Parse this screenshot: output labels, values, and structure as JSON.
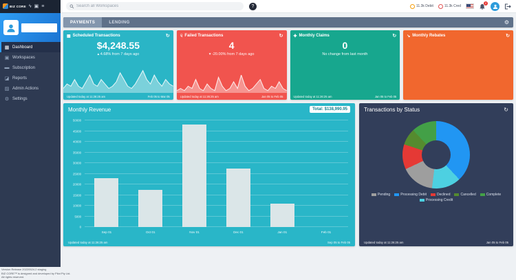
{
  "topbar": {
    "brand": "BIZ CORE",
    "search_placeholder": "Search all Workspaces",
    "help_label": "?",
    "stat_pills": [
      {
        "label": "11.3k Debit",
        "color": "#f59e0b"
      },
      {
        "label": "11.3k Cred",
        "color": "#e05252"
      }
    ],
    "bell_count": "2"
  },
  "sidebar": {
    "items": [
      {
        "label": "Dashboard",
        "icon": "dashboard-icon",
        "glyph": "▦",
        "active": true
      },
      {
        "label": "Workspaces",
        "icon": "workspaces-icon",
        "glyph": "▣"
      },
      {
        "label": "Subscription",
        "icon": "subscription-icon",
        "glyph": "▬"
      },
      {
        "label": "Reports",
        "icon": "reports-icon",
        "glyph": "◪"
      },
      {
        "label": "Admin Actions",
        "icon": "admin-actions-icon",
        "glyph": "▨"
      },
      {
        "label": "Settings",
        "icon": "settings-icon",
        "glyph": "⚙"
      }
    ],
    "fineprint": [
      "Version Release 20220524.2 staging",
      "BIZ CORE™ is designed and developed by Pilot Pty Ltd.",
      "All rights reserved."
    ]
  },
  "tabs": {
    "active": "PAYMENTS",
    "inactive": "LENDING"
  },
  "cards": [
    {
      "title": "Scheduled Transactions",
      "icon": "calendar-icon",
      "glyph": "▦",
      "value": "$4,248.55",
      "delta": "▴ 4.68% from 7 days ago",
      "updated": "Updated today at 11:26:25 am",
      "range": "Feb 05 to Mar 05",
      "color": "#2ab5c6",
      "spark": [
        2,
        4,
        3,
        6,
        3,
        2,
        5,
        8,
        4,
        3,
        6,
        4,
        2,
        3,
        5,
        9,
        6,
        3,
        2,
        4,
        7,
        10,
        6,
        4,
        8,
        5,
        3,
        6,
        4,
        3
      ]
    },
    {
      "title": "Failed Transactions",
      "icon": "thumbs-down-icon",
      "glyph": "☟",
      "value": "4",
      "delta": "▾ -20.00% from 7 days ago",
      "updated": "Updated today at 11:26:25 am",
      "range": "Jan 05 to Feb 05",
      "color": "#f1544e",
      "spark": [
        1,
        2,
        1,
        3,
        2,
        6,
        2,
        1,
        4,
        2,
        1,
        7,
        3,
        1,
        2,
        5,
        2,
        8,
        3,
        1,
        2,
        4,
        6,
        2,
        1,
        3,
        2,
        5,
        2,
        1
      ]
    },
    {
      "title": "Monthly Claims",
      "icon": "claims-icon",
      "glyph": "✚",
      "value": "0",
      "delta": "No change from last month",
      "updated": "Updated today at 11:26:25 am",
      "range": "Jan 05 to Feb 05",
      "color": "#17a78e"
    },
    {
      "title": "Monthly Rebates",
      "icon": "rebates-icon",
      "glyph": "↘",
      "color": "#f1672e"
    }
  ],
  "chart_data": [
    {
      "type": "bar",
      "title": "Monthly Revenue",
      "total_badge": "Total: $138,990.95",
      "categories": [
        "Sep 01",
        "Oct 01",
        "Nov 01",
        "Dec 01",
        "Jan 01",
        "Feb 01"
      ],
      "values": [
        23000,
        17500,
        48000,
        27500,
        11000,
        0
      ],
      "ylim": [
        0,
        50000
      ],
      "ytick_step": 5000,
      "grid": true,
      "bar_color": "#dbe6e8",
      "updated": "Updated today at 11:26:25 am",
      "range": "Sep 05 to Feb 05"
    },
    {
      "type": "pie",
      "donut": true,
      "title": "Transactions by Status",
      "slices": [
        {
          "label": "Pending",
          "value": 16,
          "color": "#9e9e9e"
        },
        {
          "label": "Processing Debit",
          "value": 38,
          "color": "#2196f3"
        },
        {
          "label": "Declined",
          "value": 12,
          "color": "#e53935"
        },
        {
          "label": "Cancelled",
          "value": 8,
          "color": "#558b2f"
        },
        {
          "label": "Complete",
          "value": 12,
          "color": "#43a047"
        },
        {
          "label": "Processing Credit",
          "value": 14,
          "color": "#4dd0e1"
        }
      ],
      "draw_order": [
        "Processing Debit",
        "Processing Credit",
        "Pending",
        "Declined",
        "Cancelled",
        "Complete"
      ],
      "legend_position": "bottom",
      "updated": "Updated today at 11:26:25 am",
      "range": "Jan 05 to Feb 05"
    }
  ]
}
